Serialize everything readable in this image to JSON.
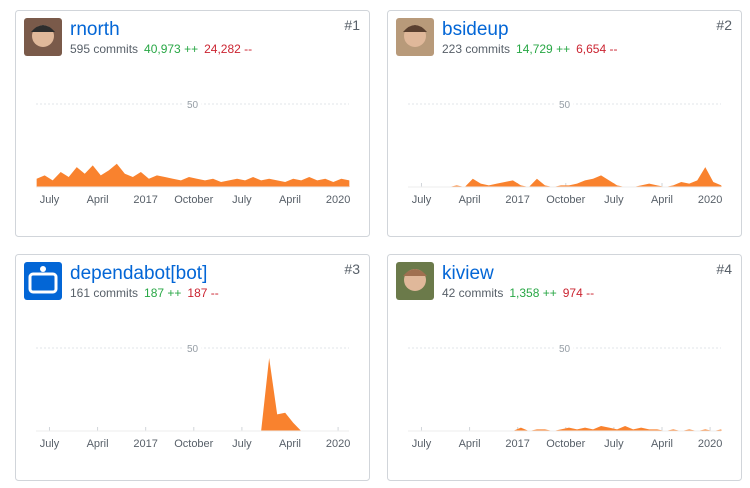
{
  "contributors": [
    {
      "name": "rnorth",
      "rank": "#1",
      "commits": "595 commits",
      "additions": "40,973 ++",
      "deletions": "24,282 --"
    },
    {
      "name": "bsideup",
      "rank": "#2",
      "commits": "223 commits",
      "additions": "14,729 ++",
      "deletions": "6,654 --"
    },
    {
      "name": "dependabot[bot]",
      "rank": "#3",
      "commits": "161 commits",
      "additions": "187 ++",
      "deletions": "187 --"
    },
    {
      "name": "kiview",
      "rank": "#4",
      "commits": "42 commits",
      "additions": "1,358 ++",
      "deletions": "974 --"
    }
  ],
  "chart_data": [
    {
      "type": "area",
      "color": "#f9822e",
      "xlim": [
        2015.29,
        2020.17
      ],
      "ylim": [
        0,
        50
      ],
      "yticks": [
        50
      ],
      "xticks": [
        {
          "value": 2015.5,
          "label": "July"
        },
        {
          "value": 2016.25,
          "label": "April"
        },
        {
          "value": 2017,
          "label": "2017"
        },
        {
          "value": 2017.75,
          "label": "October"
        },
        {
          "value": 2018.5,
          "label": "July"
        },
        {
          "value": 2019.25,
          "label": "April"
        },
        {
          "value": 2020,
          "label": "2020"
        }
      ],
      "x": [
        2015.3,
        2015.425,
        2015.55,
        2015.675,
        2015.8,
        2015.925,
        2016.05,
        2016.175,
        2016.3,
        2016.425,
        2016.55,
        2016.675,
        2016.8,
        2016.925,
        2017.05,
        2017.175,
        2017.3,
        2017.425,
        2017.55,
        2017.675,
        2017.8,
        2017.925,
        2018.05,
        2018.175,
        2018.3,
        2018.425,
        2018.55,
        2018.675,
        2018.8,
        2018.925,
        2019.05,
        2019.175,
        2019.3,
        2019.425,
        2019.55,
        2019.675,
        2019.8,
        2019.925,
        2020.05,
        2020.175
      ],
      "values": [
        5,
        7,
        4,
        9,
        6,
        12,
        8,
        13,
        7,
        10,
        14,
        8,
        6,
        9,
        5,
        7,
        6,
        5,
        4,
        6,
        5,
        4,
        5,
        3,
        4,
        5,
        4,
        6,
        4,
        5,
        4,
        3,
        5,
        4,
        6,
        4,
        5,
        3,
        5,
        4
      ]
    },
    {
      "type": "area",
      "color": "#f9822e",
      "xlim": [
        2015.29,
        2020.17
      ],
      "ylim": [
        0,
        50
      ],
      "yticks": [
        50
      ],
      "xticks": [
        {
          "value": 2015.5,
          "label": "July"
        },
        {
          "value": 2016.25,
          "label": "April"
        },
        {
          "value": 2017,
          "label": "2017"
        },
        {
          "value": 2017.75,
          "label": "October"
        },
        {
          "value": 2018.5,
          "label": "July"
        },
        {
          "value": 2019.25,
          "label": "April"
        },
        {
          "value": 2020,
          "label": "2020"
        }
      ],
      "x": [
        2015.3,
        2015.425,
        2015.55,
        2015.675,
        2015.8,
        2015.925,
        2016.05,
        2016.175,
        2016.3,
        2016.425,
        2016.55,
        2016.675,
        2016.8,
        2016.925,
        2017.05,
        2017.175,
        2017.3,
        2017.425,
        2017.55,
        2017.675,
        2017.8,
        2017.925,
        2018.05,
        2018.175,
        2018.3,
        2018.425,
        2018.55,
        2018.675,
        2018.8,
        2018.925,
        2019.05,
        2019.175,
        2019.3,
        2019.425,
        2019.55,
        2019.675,
        2019.8,
        2019.925,
        2020.05,
        2020.175
      ],
      "values": [
        0,
        0,
        0,
        0,
        0,
        0,
        1,
        0,
        5,
        2,
        1,
        2,
        3,
        4,
        1,
        0,
        5,
        1,
        0,
        1,
        1,
        2,
        4,
        5,
        7,
        4,
        1,
        0,
        0,
        1,
        2,
        1,
        0,
        1,
        3,
        2,
        4,
        12,
        3,
        1
      ]
    },
    {
      "type": "area",
      "color": "#f9822e",
      "xlim": [
        2015.29,
        2020.17
      ],
      "ylim": [
        0,
        50
      ],
      "yticks": [
        50
      ],
      "xticks": [
        {
          "value": 2015.5,
          "label": "July"
        },
        {
          "value": 2016.25,
          "label": "April"
        },
        {
          "value": 2017,
          "label": "2017"
        },
        {
          "value": 2017.75,
          "label": "October"
        },
        {
          "value": 2018.5,
          "label": "July"
        },
        {
          "value": 2019.25,
          "label": "April"
        },
        {
          "value": 2020,
          "label": "2020"
        }
      ],
      "x": [
        2015.3,
        2015.425,
        2015.55,
        2015.675,
        2015.8,
        2015.925,
        2016.05,
        2016.175,
        2016.3,
        2016.425,
        2016.55,
        2016.675,
        2016.8,
        2016.925,
        2017.05,
        2017.175,
        2017.3,
        2017.425,
        2017.55,
        2017.675,
        2017.8,
        2017.925,
        2018.05,
        2018.175,
        2018.3,
        2018.425,
        2018.55,
        2018.675,
        2018.8,
        2018.925,
        2019.05,
        2019.175,
        2019.3,
        2019.425,
        2019.55,
        2019.675,
        2019.8,
        2019.925,
        2020.05,
        2020.175
      ],
      "values": [
        0,
        0,
        0,
        0,
        0,
        0,
        0,
        0,
        0,
        0,
        0,
        0,
        0,
        0,
        0,
        0,
        0,
        0,
        0,
        0,
        0,
        0,
        0,
        0,
        0,
        0,
        0,
        0,
        0,
        44,
        10,
        11,
        5,
        0,
        0,
        0,
        0,
        0,
        0,
        0
      ]
    },
    {
      "type": "area",
      "color": "#f9822e",
      "xlim": [
        2015.29,
        2020.17
      ],
      "ylim": [
        0,
        50
      ],
      "yticks": [
        50
      ],
      "xticks": [
        {
          "value": 2015.5,
          "label": "July"
        },
        {
          "value": 2016.25,
          "label": "April"
        },
        {
          "value": 2017,
          "label": "2017"
        },
        {
          "value": 2017.75,
          "label": "October"
        },
        {
          "value": 2018.5,
          "label": "July"
        },
        {
          "value": 2019.25,
          "label": "April"
        },
        {
          "value": 2020,
          "label": "2020"
        }
      ],
      "x": [
        2015.3,
        2015.425,
        2015.55,
        2015.675,
        2015.8,
        2015.925,
        2016.05,
        2016.175,
        2016.3,
        2016.425,
        2016.55,
        2016.675,
        2016.8,
        2016.925,
        2017.05,
        2017.175,
        2017.3,
        2017.425,
        2017.55,
        2017.675,
        2017.8,
        2017.925,
        2018.05,
        2018.175,
        2018.3,
        2018.425,
        2018.55,
        2018.675,
        2018.8,
        2018.925,
        2019.05,
        2019.175,
        2019.3,
        2019.425,
        2019.55,
        2019.675,
        2019.8,
        2019.925,
        2020.05,
        2020.175
      ],
      "values": [
        0,
        0,
        0,
        0,
        0,
        0,
        0,
        0,
        0,
        0,
        0,
        0,
        0,
        0,
        2,
        0,
        1,
        1,
        0,
        1,
        2,
        1,
        2,
        1,
        3,
        2,
        1,
        3,
        1,
        2,
        1,
        1,
        0,
        1,
        0,
        1,
        0,
        1,
        0,
        1
      ]
    }
  ]
}
